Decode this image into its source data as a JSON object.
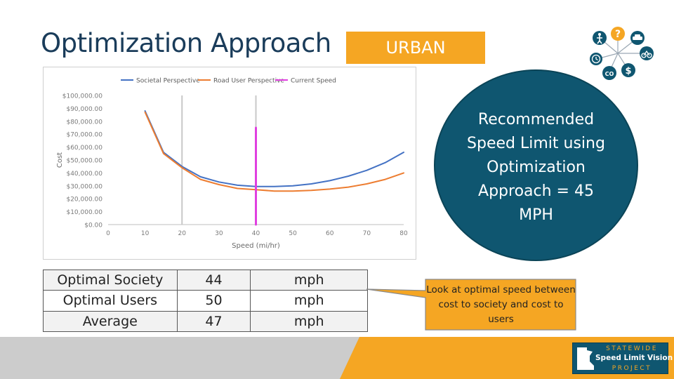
{
  "slide": {
    "title": "Optimization Approach",
    "badge": "URBAN",
    "recommendation": "Recommended Speed Limit using Optimization Approach = 45 MPH",
    "callout": "Look at optimal speed between cost to society and cost to users"
  },
  "results_table": [
    {
      "label": "Optimal Society",
      "value": "44",
      "unit": "mph"
    },
    {
      "label": "Optimal Users",
      "value": "50",
      "unit": "mph"
    },
    {
      "label": "Average",
      "value": "47",
      "unit": "mph"
    }
  ],
  "logo": {
    "line1": "STATEWIDE",
    "line2": "Speed Limit Vision",
    "line3": "PROJECT",
    "state_text": "Minnesota"
  },
  "topic_icons": [
    "pedestrian-icon",
    "question-icon",
    "car-icon",
    "bicycle-icon",
    "clock-icon",
    "co2-icon",
    "dollar-icon"
  ],
  "colors": {
    "title": "#1a3c5a",
    "accent_orange": "#f5a623",
    "circle_teal": "#0f5670",
    "societal_series": "#4472c4",
    "road_user_series": "#ed7d31",
    "current_speed": "#e040e0"
  },
  "chart_data": {
    "type": "line",
    "ylabel": "Cost",
    "xlabel": "Speed (mi/hr)",
    "xlim": [
      0,
      80
    ],
    "ylim": [
      0,
      100000
    ],
    "x_ticks": [
      0,
      10,
      20,
      30,
      40,
      50,
      60,
      70,
      80
    ],
    "y_ticks": [
      "$0.00",
      "$10,000.00",
      "$20,000.00",
      "$30,000.00",
      "$40,000.00",
      "$50,000.00",
      "$60,000.00",
      "$70,000.00",
      "$80,000.00",
      "$90,000.00",
      "$100,000.00"
    ],
    "legend_position": "top",
    "series": [
      {
        "name": "Societal Perspective",
        "color": "#4472c4",
        "x": [
          10,
          15,
          20,
          25,
          30,
          35,
          40,
          45,
          50,
          55,
          60,
          65,
          70,
          75,
          80
        ],
        "y": [
          88000,
          56000,
          45000,
          37000,
          33000,
          30500,
          29500,
          29500,
          30000,
          31500,
          34000,
          37500,
          42000,
          48000,
          56000
        ]
      },
      {
        "name": "Road User Perspective",
        "color": "#ed7d31",
        "x": [
          10,
          15,
          20,
          25,
          30,
          35,
          40,
          45,
          50,
          55,
          60,
          65,
          70,
          75,
          80
        ],
        "y": [
          87000,
          55000,
          44000,
          35000,
          31000,
          28000,
          27000,
          26000,
          26000,
          26500,
          27500,
          29000,
          31500,
          35000,
          40000
        ]
      },
      {
        "name": "Current Speed",
        "color": "#e040e0",
        "x": [
          40,
          40
        ],
        "y": [
          0,
          75000
        ]
      }
    ],
    "reference_lines_x": [
      20,
      40
    ]
  }
}
